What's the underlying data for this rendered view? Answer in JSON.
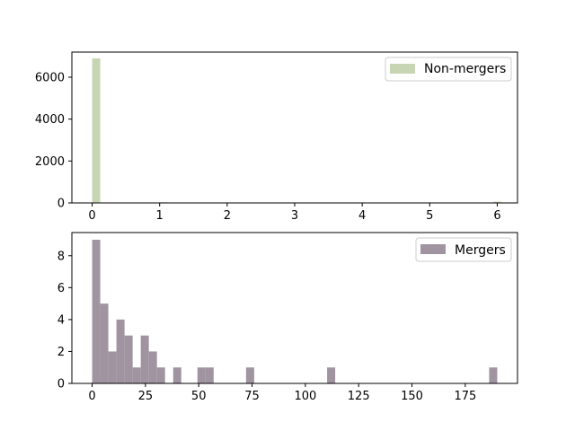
{
  "chart_data": [
    {
      "type": "bar",
      "title": "",
      "xlabel": "",
      "ylabel": "",
      "xlim": [
        -0.3,
        6.3
      ],
      "ylim": [
        0,
        7200
      ],
      "x_ticks": [
        0,
        1,
        2,
        3,
        4,
        5,
        6
      ],
      "y_ticks": [
        0,
        2000,
        4000,
        6000
      ],
      "bin_width": 0.12,
      "bins": [
        {
          "x": 0.0,
          "value": 6900
        },
        {
          "x": 1.0,
          "value": 30
        },
        {
          "x": 2.0,
          "value": 15
        },
        {
          "x": 3.0,
          "value": 10
        },
        {
          "x": 4.0,
          "value": 8
        },
        {
          "x": 5.0,
          "value": 12
        },
        {
          "x": 5.94,
          "value": 60
        }
      ],
      "color": "#c8d5b4",
      "legend": {
        "label": "Non-mergers",
        "position": "top-right"
      }
    },
    {
      "type": "bar",
      "title": "",
      "xlabel": "",
      "ylabel": "",
      "xlim": [
        -9.5,
        199.5
      ],
      "ylim": [
        0,
        9.45
      ],
      "x_ticks": [
        0,
        25,
        50,
        75,
        100,
        125,
        150,
        175
      ],
      "y_ticks": [
        0,
        2,
        4,
        6,
        8
      ],
      "bin_width": 3.8,
      "bins": [
        {
          "x": 0.0,
          "value": 9
        },
        {
          "x": 3.8,
          "value": 5
        },
        {
          "x": 7.6,
          "value": 2
        },
        {
          "x": 11.4,
          "value": 4
        },
        {
          "x": 15.2,
          "value": 3
        },
        {
          "x": 19.0,
          "value": 1
        },
        {
          "x": 22.8,
          "value": 3
        },
        {
          "x": 26.6,
          "value": 2
        },
        {
          "x": 30.4,
          "value": 1
        },
        {
          "x": 38.0,
          "value": 1
        },
        {
          "x": 49.4,
          "value": 1
        },
        {
          "x": 53.2,
          "value": 1
        },
        {
          "x": 72.2,
          "value": 1
        },
        {
          "x": 110.2,
          "value": 1
        },
        {
          "x": 186.2,
          "value": 1
        }
      ],
      "color": "#a094a0",
      "legend": {
        "label": "Mergers",
        "position": "top-right"
      }
    }
  ]
}
